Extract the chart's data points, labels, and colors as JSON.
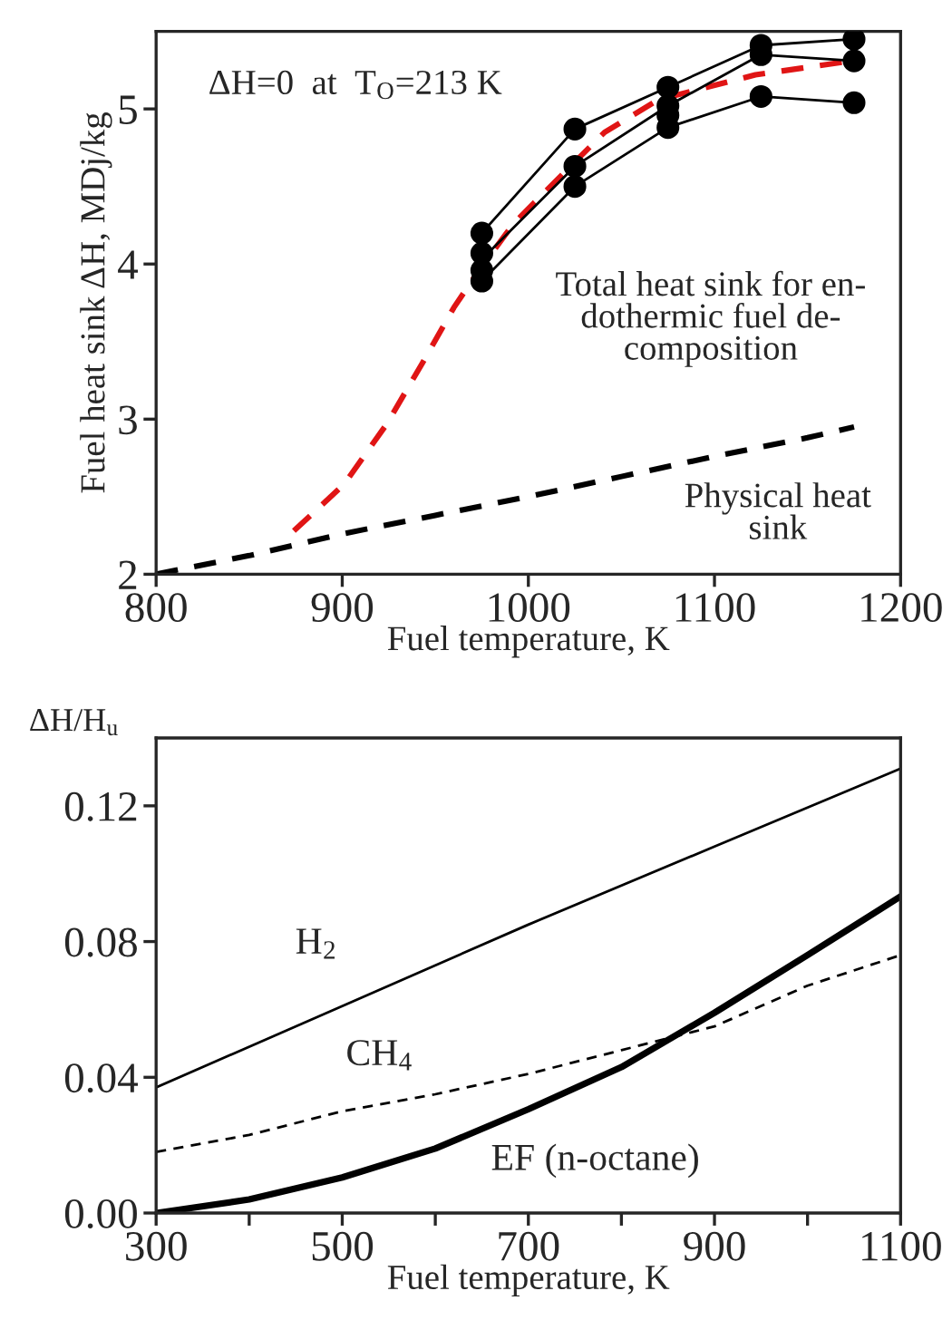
{
  "chart_data": [
    {
      "type": "line",
      "xlabel": "Fuel temperature, K",
      "ylabel": "Fuel heat sink ΔH, MDj/kg",
      "xlim": [
        800,
        1200
      ],
      "xticks": [
        800,
        900,
        1000,
        1100,
        1200
      ],
      "ylim": [
        2,
        5.5
      ],
      "yticks": [
        2,
        3,
        4,
        5
      ],
      "grid": false,
      "legend": false,
      "series": [
        {
          "color": "#e01515",
          "line_style": "dashed",
          "x": [
            874,
            901,
            924,
            943,
            960,
            973,
            992,
            1021,
            1041,
            1070,
            1122,
            1174
          ],
          "values": [
            2.28,
            2.58,
            2.97,
            3.36,
            3.72,
            3.95,
            4.26,
            4.61,
            4.85,
            5.06,
            5.22,
            5.31
          ]
        },
        {
          "color": "#000000",
          "line_style": "dashed",
          "x": [
            800,
            850,
            900,
            950,
            1000,
            1050,
            1100,
            1150,
            1175
          ],
          "values": [
            2.0,
            2.12,
            2.26,
            2.38,
            2.5,
            2.63,
            2.76,
            2.88,
            2.95
          ]
        },
        {
          "color": "#000000",
          "line_style": "solid",
          "x": [
            975,
            1025,
            1075,
            1125,
            1175
          ],
          "values": [
            4.2,
            4.87,
            5.14,
            5.41,
            5.45
          ]
        },
        {
          "color": "#000000",
          "line_style": "solid",
          "x": [
            975,
            1025,
            1075,
            1125,
            1175
          ],
          "values": [
            4.03,
            4.63,
            5.02,
            5.35,
            5.31
          ]
        },
        {
          "color": "#000000",
          "line_style": "solid",
          "x": [
            975,
            1025,
            1075,
            1125,
            1175
          ],
          "values": [
            3.89,
            4.5,
            4.88,
            5.08,
            5.04
          ]
        },
        {
          "type": "scatter",
          "color": "#000000",
          "marker": "circle",
          "x": [
            975,
            975,
            975,
            975,
            1025,
            1025,
            1025,
            1075,
            1075,
            1075,
            1075,
            1125,
            1125,
            1125,
            1175,
            1175,
            1175
          ],
          "values": [
            4.2,
            4.07,
            3.96,
            3.89,
            4.87,
            4.63,
            4.5,
            5.14,
            5.02,
            4.96,
            4.88,
            5.41,
            5.35,
            5.08,
            5.45,
            5.31,
            5.04
          ]
        }
      ],
      "annotations": [
        "ΔH=0  at  T$_{O}$=213 K",
        "Total heat sink for en-\ndothermic fuel de-\ncomposition",
        "Physical heat\nsink"
      ]
    },
    {
      "type": "line",
      "xlabel": "Fuel temperature, K",
      "ylabel": "ΔH/H$_{u}$",
      "xlim": [
        300,
        1100
      ],
      "xticks": [
        300,
        {
          "value": 400,
          "label": null
        },
        500,
        {
          "value": 600,
          "label": null
        },
        700,
        {
          "value": 800,
          "label": null
        },
        900,
        {
          "value": 1000,
          "label": null
        },
        1100
      ],
      "ylim": [
        0,
        0.14
      ],
      "yticks": [
        {
          "value": 0,
          "label": "0.00"
        },
        {
          "value": 0.04,
          "label": "0.04"
        },
        {
          "value": 0.08,
          "label": "0.08"
        },
        {
          "value": 0.12,
          "label": "0.12"
        }
      ],
      "grid": false,
      "legend": false,
      "series": [
        {
          "color": "#000000",
          "line_style": "solid",
          "x": [
            300,
            500,
            700,
            900,
            1100
          ],
          "values": [
            0.037,
            0.061,
            0.085,
            0.108,
            0.131
          ]
        },
        {
          "color": "#000000",
          "line_style": "dashed",
          "x": [
            300,
            400,
            500,
            600,
            700,
            800,
            900,
            1000,
            1100
          ],
          "values": [
            0.018,
            0.023,
            0.03,
            0.035,
            0.041,
            0.048,
            0.055,
            0.067,
            0.076
          ]
        },
        {
          "color": "#000000",
          "line_style": "solid",
          "x": [
            300,
            400,
            500,
            600,
            700,
            800,
            900,
            1000,
            1100
          ],
          "values": [
            0.0,
            0.004,
            0.0105,
            0.019,
            0.0306,
            0.043,
            0.059,
            0.076,
            0.0933
          ]
        }
      ],
      "annotations": [
        "H$_{2}$",
        "CH$_{4}$",
        "EF (n-octane)"
      ]
    }
  ]
}
